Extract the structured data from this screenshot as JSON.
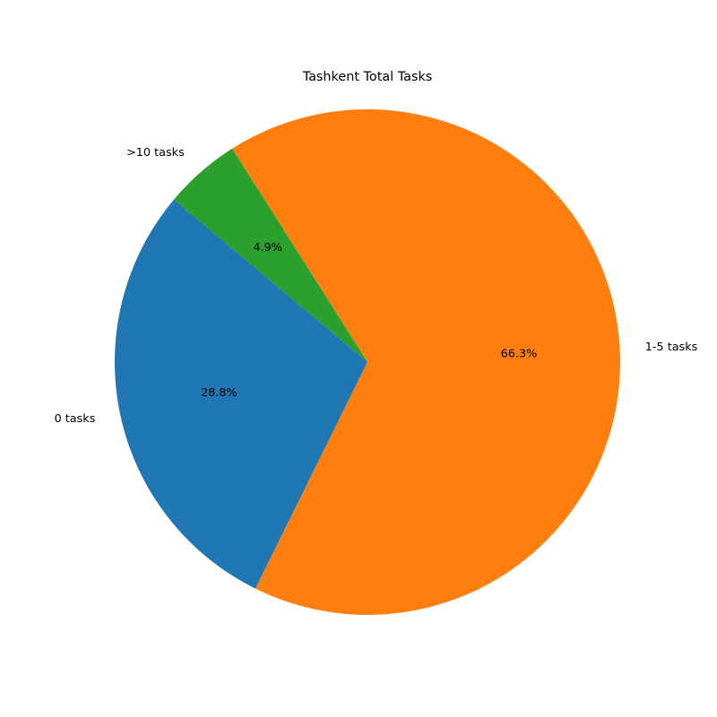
{
  "chart_data": {
    "type": "pie",
    "title": "Tashkent Total Tasks",
    "categories": [
      "0 tasks",
      "1-5 tasks",
      ">10 tasks"
    ],
    "values": [
      28.8,
      66.3,
      4.9
    ],
    "value_labels": [
      "28.8%",
      "66.3%",
      "4.9%"
    ],
    "colors": [
      "#1f77b4",
      "#ff7f0e",
      "#2ca02c"
    ],
    "start_angle_deg": 140,
    "direction": "counterclockwise",
    "legend": "none"
  }
}
